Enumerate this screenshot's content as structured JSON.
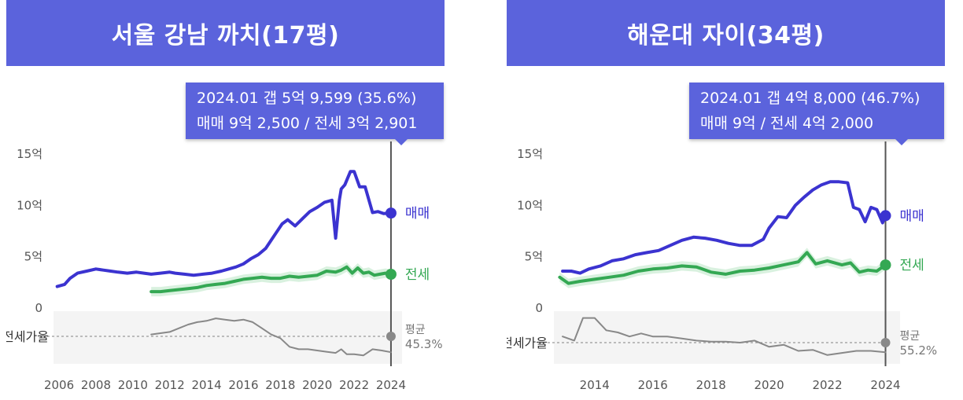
{
  "chart_data": [
    {
      "type": "line",
      "title": "서울 강남 까치(17평)",
      "tooltip": {
        "line1": "2024.01  갭 5억 9,599 (35.6%)",
        "line2": "매매 9억 2,500 / 전세 3억 2,901"
      },
      "y_ticks": [
        "15억",
        "10억",
        "5억",
        "0"
      ],
      "x_ticks": [
        "2006",
        "2008",
        "2010",
        "2012",
        "2014",
        "2016",
        "2018",
        "2020",
        "2022",
        "2024"
      ],
      "xlim": [
        2005.7,
        2024.6
      ],
      "ylim": [
        0,
        15
      ],
      "ratio_label": "전세가율",
      "avg_label": "평균",
      "avg_value": "45.3%",
      "series": [
        {
          "name": "매매",
          "color": "#3b33d0",
          "x": [
            2005.9,
            2006.3,
            2006.6,
            2007.0,
            2007.5,
            2008.0,
            2008.4,
            2008.8,
            2009.2,
            2009.7,
            2010.2,
            2010.6,
            2011.0,
            2011.5,
            2012.0,
            2012.3,
            2012.8,
            2013.3,
            2013.8,
            2014.3,
            2014.8,
            2015.2,
            2015.6,
            2016.0,
            2016.4,
            2016.8,
            2017.2,
            2017.5,
            2017.8,
            2018.1,
            2018.4,
            2018.8,
            2019.2,
            2019.6,
            2020.0,
            2020.4,
            2020.8,
            2021.0,
            2021.2,
            2021.3,
            2021.5,
            2021.8,
            2022.0,
            2022.3,
            2022.6,
            2023.0,
            2023.3,
            2023.6,
            2024.0
          ],
          "values": [
            2.1,
            2.3,
            2.9,
            3.4,
            3.6,
            3.8,
            3.7,
            3.6,
            3.5,
            3.4,
            3.5,
            3.4,
            3.3,
            3.4,
            3.5,
            3.4,
            3.3,
            3.2,
            3.3,
            3.4,
            3.6,
            3.8,
            4.0,
            4.3,
            4.8,
            5.2,
            5.8,
            6.6,
            7.4,
            8.2,
            8.6,
            8.0,
            8.7,
            9.4,
            9.8,
            10.3,
            10.5,
            6.8,
            10.5,
            11.6,
            12.0,
            13.3,
            13.3,
            11.8,
            11.8,
            9.3,
            9.4,
            9.2,
            9.25
          ]
        },
        {
          "name": "전세",
          "color": "#34a853",
          "x": [
            2011.0,
            2011.5,
            2012.0,
            2012.5,
            2013.0,
            2013.5,
            2014.0,
            2014.5,
            2015.0,
            2015.5,
            2016.0,
            2016.5,
            2017.0,
            2017.5,
            2018.0,
            2018.5,
            2019.0,
            2019.5,
            2020.0,
            2020.5,
            2021.0,
            2021.3,
            2021.6,
            2021.9,
            2022.2,
            2022.5,
            2022.8,
            2023.1,
            2023.4,
            2023.7,
            2024.0
          ],
          "values": [
            1.6,
            1.6,
            1.7,
            1.8,
            1.9,
            2.0,
            2.2,
            2.3,
            2.4,
            2.6,
            2.8,
            2.9,
            3.0,
            2.9,
            2.9,
            3.1,
            3.0,
            3.1,
            3.2,
            3.6,
            3.5,
            3.7,
            4.0,
            3.4,
            3.9,
            3.4,
            3.5,
            3.2,
            3.3,
            3.4,
            3.29
          ]
        },
        {
          "name": "전세가율",
          "color": "#888888",
          "x": [
            2011.0,
            2011.5,
            2012.0,
            2012.5,
            2013.0,
            2013.5,
            2014.0,
            2014.5,
            2015.0,
            2015.5,
            2016.0,
            2016.5,
            2017.0,
            2017.5,
            2018.0,
            2018.5,
            2019.0,
            2019.5,
            2020.0,
            2020.5,
            2021.0,
            2021.3,
            2021.6,
            2022.0,
            2022.5,
            2023.0,
            2023.5,
            2024.0
          ],
          "values": [
            50,
            51,
            52,
            55,
            58,
            60,
            61,
            63,
            62,
            61,
            62,
            60,
            55,
            50,
            47,
            40,
            38,
            38,
            37,
            36,
            35,
            38,
            34,
            34,
            33,
            38,
            37,
            35.6
          ]
        }
      ]
    },
    {
      "type": "line",
      "title": "해운대 자이(34평)",
      "tooltip": {
        "line1": "2024.01  갭 4억 8,000 (46.7%)",
        "line2": "매매 9억 / 전세 4억 2,000"
      },
      "y_ticks": [
        "15억",
        "10억",
        "5억",
        "0"
      ],
      "x_ticks": [
        "2014",
        "2016",
        "2018",
        "2020",
        "2022",
        "2024"
      ],
      "xlim": [
        2012.6,
        2024.5
      ],
      "ylim": [
        0,
        15
      ],
      "ratio_label": "전세가율",
      "avg_label": "평균",
      "avg_value": "55.2%",
      "series": [
        {
          "name": "매매",
          "color": "#3b33d0",
          "x": [
            2012.9,
            2013.2,
            2013.5,
            2013.8,
            2014.2,
            2014.6,
            2015.0,
            2015.4,
            2015.8,
            2016.2,
            2016.6,
            2017.0,
            2017.4,
            2017.8,
            2018.2,
            2018.6,
            2019.0,
            2019.4,
            2019.8,
            2020.0,
            2020.3,
            2020.6,
            2020.9,
            2021.2,
            2021.5,
            2021.8,
            2022.1,
            2022.4,
            2022.7,
            2022.9,
            2023.1,
            2023.3,
            2023.5,
            2023.7,
            2023.9,
            2024.0
          ],
          "values": [
            3.6,
            3.6,
            3.4,
            3.8,
            4.1,
            4.6,
            4.8,
            5.2,
            5.4,
            5.6,
            6.1,
            6.6,
            6.9,
            6.8,
            6.6,
            6.3,
            6.1,
            6.1,
            6.7,
            7.8,
            8.9,
            8.8,
            10.0,
            10.8,
            11.5,
            12.0,
            12.3,
            12.3,
            12.2,
            9.8,
            9.6,
            8.4,
            9.8,
            9.6,
            8.3,
            9.0
          ]
        },
        {
          "name": "전세",
          "color": "#34a853",
          "x": [
            2012.8,
            2013.1,
            2013.5,
            2014.0,
            2014.5,
            2015.0,
            2015.5,
            2016.0,
            2016.5,
            2017.0,
            2017.5,
            2018.0,
            2018.5,
            2019.0,
            2019.5,
            2020.0,
            2020.5,
            2021.0,
            2021.3,
            2021.6,
            2022.0,
            2022.5,
            2022.8,
            2023.1,
            2023.4,
            2023.7,
            2024.0
          ],
          "values": [
            3.0,
            2.4,
            2.6,
            2.8,
            3.0,
            3.2,
            3.6,
            3.8,
            3.9,
            4.1,
            4.0,
            3.5,
            3.3,
            3.6,
            3.7,
            3.9,
            4.2,
            4.5,
            5.4,
            4.3,
            4.6,
            4.2,
            4.4,
            3.5,
            3.7,
            3.6,
            4.2
          ]
        },
        {
          "name": "전세가율",
          "color": "#888888",
          "x": [
            2012.9,
            2013.3,
            2013.6,
            2014.0,
            2014.4,
            2014.8,
            2015.2,
            2015.6,
            2016.0,
            2016.5,
            2017.0,
            2017.5,
            2018.0,
            2018.5,
            2019.0,
            2019.5,
            2020.0,
            2020.5,
            2021.0,
            2021.5,
            2022.0,
            2022.5,
            2023.0,
            2023.5,
            2024.0
          ],
          "values": [
            62,
            58,
            80,
            80,
            68,
            66,
            62,
            65,
            62,
            62,
            60,
            58,
            57,
            57,
            56,
            58,
            52,
            54,
            48,
            49,
            44,
            46,
            48,
            48,
            46.7
          ]
        }
      ]
    }
  ]
}
